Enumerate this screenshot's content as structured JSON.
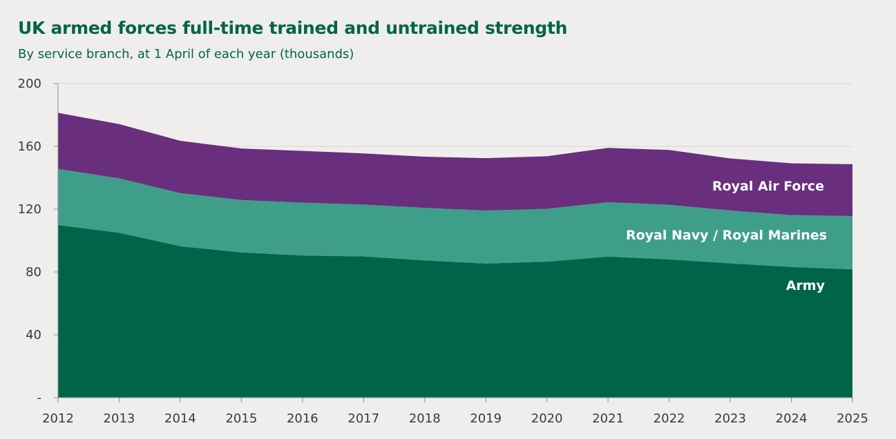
{
  "colors": {
    "background": "#efeeec",
    "title": "#006548",
    "army": "#006548",
    "navy": "#3f9e8a",
    "raf": "#692e7d",
    "grid": "#d6d5d3",
    "axis": "#8a8a8a"
  },
  "chart_data": {
    "type": "area",
    "stacked": true,
    "title": "UK armed forces full-time trained and untrained strength",
    "subtitle": "By service branch, at 1 April of each year (thousands)",
    "xlabel": "",
    "ylabel": "",
    "x": [
      2012,
      2013,
      2014,
      2015,
      2016,
      2017,
      2018,
      2019,
      2020,
      2021,
      2022,
      2023,
      2024,
      2025
    ],
    "ylim": [
      0,
      200
    ],
    "yticks": [
      0,
      40,
      80,
      120,
      160,
      200
    ],
    "ytick_labels": [
      "-",
      "40",
      "80",
      "120",
      "160",
      "200"
    ],
    "grid": true,
    "series": [
      {
        "name": "Army",
        "values": [
          109.9,
          105.0,
          96.4,
          92.5,
          90.5,
          89.9,
          87.4,
          85.4,
          86.6,
          89.8,
          88.0,
          85.5,
          83.2,
          81.7
        ]
      },
      {
        "name": "Royal Navy / Royal Marines",
        "values": [
          35.7,
          34.6,
          33.8,
          33.3,
          33.6,
          33.0,
          33.4,
          33.7,
          33.6,
          34.6,
          34.8,
          33.6,
          33.0,
          33.9
        ]
      },
      {
        "name": "Royal Air Force",
        "values": [
          35.7,
          34.6,
          33.3,
          32.8,
          33.0,
          32.6,
          32.6,
          33.4,
          33.5,
          34.6,
          34.9,
          33.2,
          33.0,
          33.0
        ]
      }
    ]
  }
}
